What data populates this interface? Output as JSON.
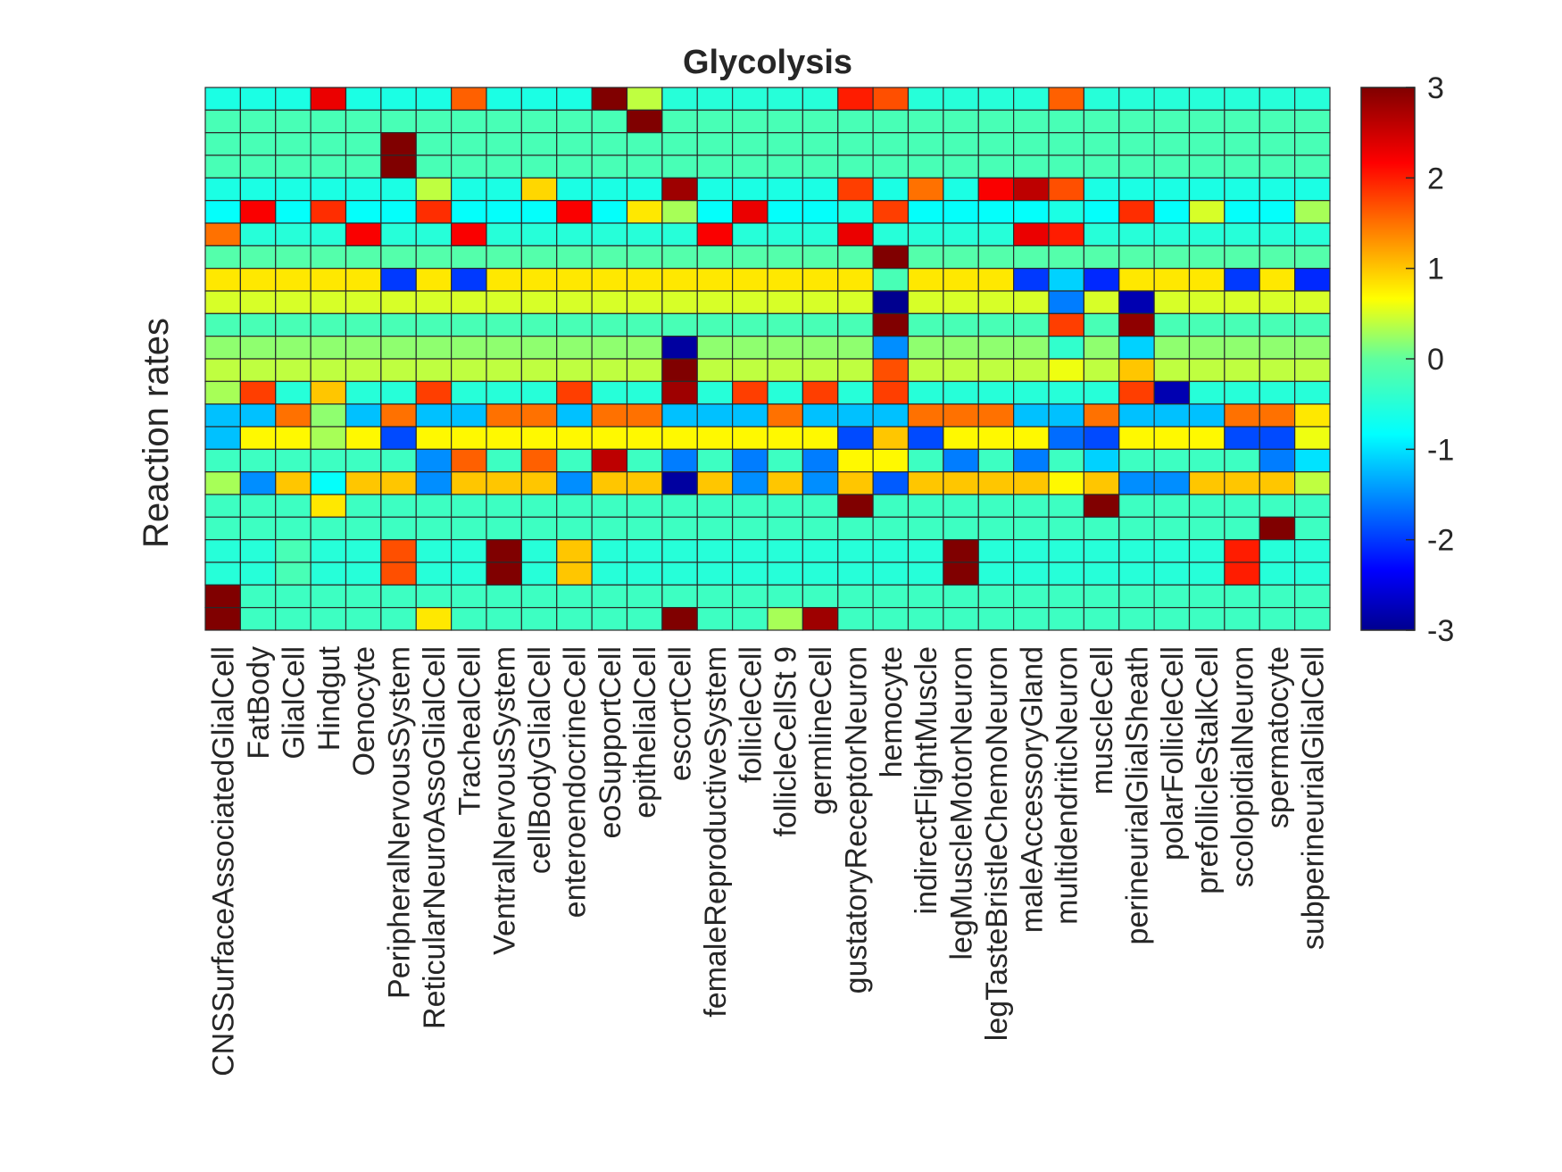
{
  "chart_data": {
    "type": "heatmap",
    "title": "Glycolysis",
    "ylabel": "Reaction rates",
    "xlabel": "",
    "colormap": "jet",
    "colorbar": {
      "min": -3,
      "max": 3,
      "ticks": [
        "3",
        "2",
        "1",
        "0",
        "-1",
        "-2",
        "-3"
      ]
    },
    "columns": [
      "CNSSurfaceAssociatedGlialCell",
      "FatBody",
      "GlialCell",
      "Hindgut",
      "Oenocyte",
      "PeripheralNervousSystem",
      "ReticularNeuroAssoGlialCell",
      "TrachealCell",
      "VentralNervousSystem",
      "cellBodyGlialCell",
      "enteroendocrineCell",
      "eoSupportCell",
      "epithelialCell",
      "escortCell",
      "femaleReproductiveSystem",
      "follicleCell",
      "follicleCellSt 9",
      "germlineCell",
      "gustatoryReceptorNeuron",
      "hemocyte",
      "indirectFlightMuscle",
      "legMuscleMotorNeuron",
      "legTasteBristleChemoNeuron",
      "maleAccessoryGland",
      "multidendriticNeuron",
      "muscleCell",
      "perineurialGlialSheath",
      "polarFollicleCell",
      "prefollicleStalkCell",
      "scolopidialNeuron",
      "spermatocyte",
      "subperineurialGlialCell"
    ],
    "values": [
      [
        -0.6,
        -0.6,
        -0.6,
        2.3,
        -0.6,
        -0.6,
        -0.6,
        1.6,
        -0.6,
        -0.6,
        -0.6,
        3.0,
        0.4,
        -0.5,
        -0.5,
        -0.5,
        -0.5,
        -0.5,
        2.0,
        1.7,
        -0.5,
        -0.5,
        -0.5,
        -0.5,
        1.6,
        -0.5,
        -0.5,
        -0.5,
        -0.5,
        -0.5,
        -0.5,
        -0.5
      ],
      [
        -0.2,
        -0.2,
        -0.2,
        -0.2,
        -0.2,
        -0.2,
        -0.2,
        -0.2,
        -0.2,
        -0.2,
        -0.2,
        -0.2,
        3.0,
        -0.2,
        -0.2,
        -0.2,
        -0.2,
        -0.2,
        -0.2,
        -0.2,
        -0.2,
        -0.2,
        -0.2,
        -0.2,
        -0.2,
        -0.2,
        -0.2,
        -0.2,
        -0.2,
        -0.2,
        -0.2,
        -0.2
      ],
      [
        -0.2,
        -0.2,
        -0.2,
        -0.2,
        -0.2,
        3.0,
        -0.2,
        -0.2,
        -0.2,
        -0.2,
        -0.2,
        -0.2,
        -0.2,
        -0.2,
        -0.2,
        -0.2,
        -0.2,
        -0.2,
        -0.2,
        -0.2,
        -0.2,
        -0.2,
        -0.2,
        -0.2,
        -0.2,
        -0.2,
        -0.2,
        -0.2,
        -0.2,
        -0.2,
        -0.2,
        -0.2
      ],
      [
        -0.2,
        -0.2,
        -0.2,
        -0.2,
        -0.2,
        3.0,
        -0.2,
        -0.2,
        -0.2,
        -0.2,
        -0.2,
        -0.2,
        -0.2,
        -0.2,
        -0.2,
        -0.2,
        -0.2,
        -0.2,
        -0.2,
        -0.2,
        -0.2,
        -0.2,
        -0.2,
        -0.2,
        -0.2,
        -0.2,
        -0.2,
        -0.2,
        -0.2,
        -0.2,
        -0.2,
        -0.2
      ],
      [
        -0.6,
        -0.6,
        -0.6,
        -0.6,
        -0.6,
        -0.6,
        0.4,
        -0.6,
        -0.6,
        0.9,
        -0.6,
        -0.6,
        -0.6,
        2.8,
        -0.6,
        -0.6,
        -0.6,
        -0.6,
        1.8,
        -0.6,
        1.5,
        -0.6,
        2.2,
        2.6,
        1.7,
        -0.6,
        -0.6,
        -0.6,
        -0.6,
        -0.6,
        -0.6,
        -0.6
      ],
      [
        -0.8,
        2.2,
        -0.8,
        1.9,
        -0.8,
        -0.8,
        1.9,
        -0.8,
        -0.8,
        -0.8,
        2.2,
        -0.8,
        0.8,
        0.3,
        -0.8,
        2.3,
        -0.8,
        -0.8,
        -0.6,
        1.8,
        -0.8,
        -0.8,
        -0.8,
        -0.8,
        -0.6,
        -0.8,
        1.9,
        -0.8,
        0.5,
        -0.8,
        -0.8,
        0.3
      ],
      [
        1.5,
        -0.5,
        -0.5,
        -0.5,
        2.2,
        -0.5,
        -0.5,
        2.2,
        -0.5,
        -0.5,
        -0.5,
        -0.5,
        -0.5,
        -0.5,
        2.2,
        -0.5,
        -0.5,
        -0.5,
        2.3,
        -0.5,
        -0.5,
        -0.5,
        -0.5,
        2.3,
        2.0,
        -0.5,
        -0.5,
        -0.5,
        -0.5,
        -0.5,
        -0.5,
        -0.5
      ],
      [
        -0.1,
        -0.1,
        -0.1,
        -0.1,
        -0.1,
        -0.1,
        -0.1,
        -0.1,
        -0.1,
        -0.1,
        -0.1,
        -0.1,
        -0.1,
        -0.1,
        -0.1,
        -0.1,
        -0.1,
        -0.1,
        -0.1,
        3.0,
        -0.1,
        -0.1,
        -0.1,
        -0.1,
        -0.1,
        -0.1,
        -0.1,
        -0.1,
        -0.1,
        -0.1,
        -0.1,
        -0.1
      ],
      [
        0.8,
        0.8,
        0.8,
        0.8,
        0.8,
        -2.0,
        0.8,
        -2.0,
        0.8,
        0.8,
        0.8,
        0.8,
        0.8,
        0.8,
        0.8,
        0.8,
        0.8,
        0.8,
        0.8,
        -0.2,
        0.8,
        0.8,
        0.8,
        -2.0,
        -1.1,
        -2.1,
        0.8,
        0.8,
        0.8,
        -2.0,
        0.8,
        -2.1
      ],
      [
        0.5,
        0.5,
        0.5,
        0.5,
        0.5,
        0.5,
        0.5,
        0.5,
        0.5,
        0.5,
        0.5,
        0.5,
        0.5,
        0.5,
        0.5,
        0.5,
        0.5,
        0.5,
        0.5,
        -3.0,
        0.5,
        0.5,
        0.5,
        0.5,
        -1.6,
        0.5,
        -2.8,
        0.5,
        0.5,
        0.5,
        0.5,
        0.5
      ],
      [
        -0.2,
        -0.2,
        -0.2,
        -0.2,
        -0.2,
        -0.2,
        -0.2,
        -0.2,
        -0.2,
        -0.2,
        -0.2,
        -0.2,
        -0.2,
        -0.2,
        -0.2,
        -0.2,
        -0.2,
        -0.2,
        -0.2,
        3.0,
        -0.2,
        -0.2,
        -0.2,
        -0.2,
        1.8,
        -0.2,
        2.9,
        -0.2,
        -0.2,
        -0.2,
        -0.2,
        -0.2
      ],
      [
        0.2,
        0.2,
        0.2,
        0.2,
        0.2,
        0.2,
        0.2,
        0.2,
        0.2,
        0.2,
        0.2,
        0.2,
        0.2,
        -2.9,
        0.2,
        0.2,
        0.2,
        0.2,
        0.2,
        -1.5,
        0.2,
        0.2,
        0.2,
        0.2,
        -0.4,
        0.2,
        -1.1,
        0.2,
        0.2,
        0.2,
        0.2,
        0.2
      ],
      [
        0.4,
        0.4,
        0.4,
        0.4,
        0.4,
        0.4,
        0.4,
        0.4,
        0.4,
        0.4,
        0.4,
        0.4,
        0.4,
        3.0,
        0.4,
        0.4,
        0.4,
        0.4,
        0.4,
        1.7,
        0.4,
        0.4,
        0.4,
        0.4,
        0.6,
        0.4,
        1.0,
        0.4,
        0.4,
        0.4,
        0.4,
        0.4
      ],
      [
        0.3,
        1.8,
        -0.5,
        1.0,
        -0.5,
        -0.5,
        1.8,
        -0.5,
        -0.5,
        -0.5,
        1.8,
        -0.5,
        -0.5,
        2.8,
        -0.5,
        1.8,
        -0.5,
        1.8,
        -0.5,
        1.8,
        -0.5,
        -0.5,
        -0.5,
        -0.5,
        -0.5,
        -0.5,
        1.8,
        -2.8,
        -0.5,
        -0.5,
        -0.5,
        -0.5
      ],
      [
        -1.2,
        -1.2,
        1.5,
        0.2,
        -1.2,
        1.5,
        -1.2,
        -1.2,
        1.5,
        1.5,
        -1.2,
        1.5,
        1.5,
        -1.2,
        -1.2,
        -1.2,
        1.5,
        -1.2,
        -1.2,
        -1.2,
        1.5,
        1.5,
        1.5,
        -1.2,
        -1.2,
        1.5,
        -1.2,
        -1.2,
        -1.2,
        1.5,
        1.5,
        0.8
      ],
      [
        -1.2,
        0.7,
        0.7,
        0.3,
        0.7,
        -1.9,
        0.7,
        0.7,
        0.7,
        0.7,
        0.7,
        0.7,
        0.7,
        0.7,
        0.7,
        0.7,
        0.7,
        0.7,
        -1.9,
        1.0,
        -1.9,
        0.7,
        0.7,
        0.7,
        -1.7,
        -1.9,
        0.7,
        0.7,
        0.7,
        -1.9,
        -1.9,
        0.6
      ],
      [
        -0.3,
        -0.3,
        -0.3,
        -0.3,
        -0.3,
        -0.3,
        -1.5,
        1.6,
        -0.3,
        1.6,
        -0.3,
        2.6,
        -0.3,
        -1.6,
        -0.3,
        -1.6,
        -0.3,
        -1.6,
        0.7,
        0.7,
        -0.3,
        -1.6,
        -0.3,
        -1.6,
        -0.3,
        -1.1,
        -0.3,
        -0.3,
        -0.3,
        -0.3,
        -1.6,
        -1.0
      ],
      [
        0.3,
        -1.5,
        1.0,
        -0.8,
        1.0,
        1.0,
        -1.5,
        1.0,
        1.0,
        1.0,
        -1.5,
        1.0,
        1.0,
        -2.9,
        1.0,
        -1.5,
        1.0,
        -1.5,
        1.0,
        -1.8,
        1.0,
        1.0,
        1.0,
        1.0,
        0.7,
        1.0,
        -1.5,
        -1.5,
        1.0,
        1.0,
        1.0,
        0.4
      ],
      [
        -0.3,
        -0.3,
        -0.3,
        0.8,
        -0.3,
        -0.3,
        -0.3,
        -0.3,
        -0.3,
        -0.3,
        -0.3,
        -0.3,
        -0.3,
        -0.3,
        -0.3,
        -0.3,
        -0.3,
        -0.3,
        3.0,
        -0.3,
        -0.3,
        -0.3,
        -0.3,
        -0.3,
        -0.3,
        3.0,
        -0.3,
        -0.3,
        -0.3,
        -0.3,
        -0.3,
        -0.3
      ],
      [
        -0.3,
        -0.3,
        -0.3,
        -0.3,
        -0.3,
        -0.3,
        -0.3,
        -0.3,
        -0.3,
        -0.3,
        -0.3,
        -0.3,
        -0.3,
        -0.3,
        -0.3,
        -0.3,
        -0.3,
        -0.3,
        -0.3,
        -0.3,
        -0.3,
        -0.3,
        -0.3,
        -0.3,
        -0.3,
        -0.3,
        -0.3,
        -0.3,
        -0.3,
        -0.3,
        3.0,
        -0.3
      ],
      [
        -0.5,
        -0.5,
        -0.2,
        -0.5,
        -0.5,
        1.7,
        -0.5,
        -0.5,
        3.0,
        -0.5,
        1.0,
        -0.5,
        -0.5,
        -0.5,
        -0.5,
        -0.5,
        -0.5,
        -0.5,
        -0.5,
        -0.5,
        -0.5,
        3.0,
        -0.5,
        -0.5,
        -0.5,
        -0.5,
        -0.5,
        -0.5,
        -0.5,
        2.0,
        -0.5,
        -0.5
      ],
      [
        -0.5,
        -0.5,
        -0.2,
        -0.5,
        -0.5,
        1.7,
        -0.5,
        -0.5,
        3.0,
        -0.5,
        1.0,
        -0.5,
        -0.5,
        -0.5,
        -0.5,
        -0.5,
        -0.5,
        -0.5,
        -0.5,
        -0.5,
        -0.5,
        3.0,
        -0.5,
        -0.5,
        -0.5,
        -0.5,
        -0.5,
        -0.5,
        -0.5,
        2.0,
        -0.5,
        -0.5
      ],
      [
        3.0,
        -0.3,
        -0.3,
        -0.3,
        -0.3,
        -0.3,
        -0.3,
        -0.3,
        -0.3,
        -0.3,
        -0.3,
        -0.3,
        -0.3,
        -0.3,
        -0.3,
        -0.3,
        -0.3,
        -0.3,
        -0.3,
        -0.3,
        -0.3,
        -0.3,
        -0.3,
        -0.3,
        -0.3,
        -0.3,
        -0.3,
        -0.3,
        -0.3,
        -0.3,
        -0.3,
        -0.3
      ],
      [
        3.0,
        -0.3,
        -0.3,
        -0.3,
        -0.3,
        -0.3,
        0.8,
        -0.3,
        -0.3,
        -0.3,
        -0.3,
        -0.3,
        -0.3,
        3.0,
        -0.3,
        -0.3,
        0.3,
        2.8,
        -0.3,
        -0.3,
        -0.3,
        -0.3,
        -0.3,
        -0.3,
        -0.3,
        -0.3,
        -0.3,
        -0.3,
        -0.3,
        -0.3,
        -0.3,
        -0.3
      ]
    ]
  }
}
